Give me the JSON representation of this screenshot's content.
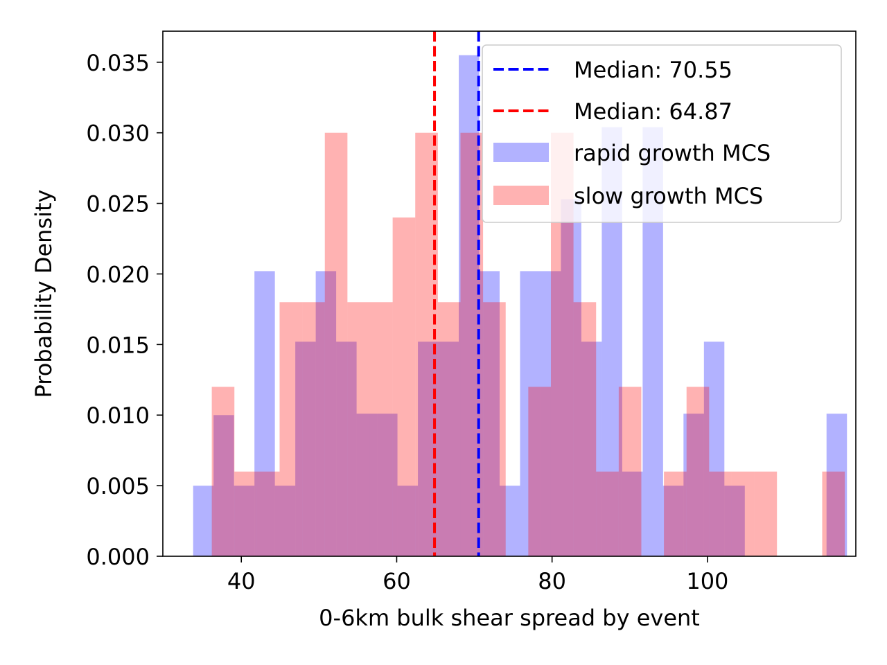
{
  "chart_data": {
    "type": "bar",
    "title": "",
    "xlabel": "0-6km bulk shear spread by event",
    "ylabel": "Probability Density",
    "xlim": [
      29.9,
      119.1
    ],
    "ylim": [
      0,
      0.0372
    ],
    "xticks": [
      40,
      60,
      80,
      100
    ],
    "xtick_labels": [
      "40",
      "60",
      "80",
      "100"
    ],
    "yticks": [
      0.0,
      0.005,
      0.01,
      0.015,
      0.02,
      0.025,
      0.03,
      0.035
    ],
    "ytick_labels": [
      "0.000",
      "0.005",
      "0.010",
      "0.015",
      "0.020",
      "0.025",
      "0.030",
      "0.035"
    ],
    "grid": false,
    "legend_position": "upper right",
    "series": [
      {
        "name": "rapid growth MCS",
        "color": "#0000ff",
        "alpha": 0.3,
        "bin_start": 33.8,
        "bin_width": 2.63,
        "values": [
          0.005,
          0.01,
          0.005,
          0.0202,
          0.005,
          0.0152,
          0.0202,
          0.0152,
          0.0101,
          0.0101,
          0.005,
          0.0152,
          0.0152,
          0.0355,
          0.0202,
          0.005,
          0.0202,
          0.0202,
          0.0253,
          0.0152,
          0.0304,
          0.006,
          0.0304,
          0.005,
          0.0101,
          0.0152,
          0.005,
          0,
          0,
          0,
          0,
          0.0101
        ]
      },
      {
        "name": "slow growth MCS",
        "color": "#ff0000",
        "alpha": 0.3,
        "bin_start": 36.2,
        "bin_width": 2.91,
        "values": [
          0.012,
          0.006,
          0.006,
          0.018,
          0.018,
          0.03,
          0.018,
          0.018,
          0.024,
          0.03,
          0.018,
          0.03,
          0.018,
          0,
          0.012,
          0.03,
          0.018,
          0.006,
          0.012,
          0,
          0.006,
          0.012,
          0.006,
          0.006,
          0.006,
          0,
          0,
          0.006
        ]
      }
    ],
    "reference_lines": [
      {
        "label": "Median: 70.55",
        "x": 70.55,
        "color": "#0000ff",
        "style": "dashed"
      },
      {
        "label": "Median: 64.87",
        "x": 64.87,
        "color": "#ff0000",
        "style": "dashed"
      }
    ],
    "legend": [
      {
        "label": "Median: 70.55",
        "kind": "line",
        "color": "#0000ff"
      },
      {
        "label": "Median: 64.87",
        "kind": "line",
        "color": "#ff0000"
      },
      {
        "label": "rapid growth MCS",
        "kind": "patch",
        "color": "#0000ff"
      },
      {
        "label": "slow growth MCS",
        "kind": "patch",
        "color": "#ff0000"
      }
    ]
  }
}
